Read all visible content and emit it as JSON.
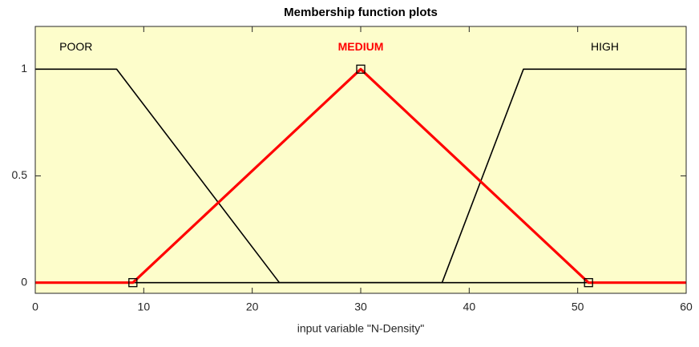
{
  "chart_data": {
    "type": "line",
    "title": "Membership function plots",
    "x_label": "input variable \"N-Density\"",
    "xlim": [
      0,
      60
    ],
    "xticks": [
      0,
      10,
      20,
      30,
      40,
      50,
      60
    ],
    "ylim": [
      -0.05,
      1.2
    ],
    "yticks": [
      0,
      0.5,
      1
    ],
    "grid": false,
    "background": "#fdfdcb",
    "series": [
      {
        "name": "POOR",
        "color": "#000000",
        "x": [
          0,
          7.5,
          22.5,
          60
        ],
        "values": [
          1,
          1,
          0,
          0
        ]
      },
      {
        "name": "HIGH",
        "color": "#000000",
        "x": [
          0,
          37.5,
          45,
          60
        ],
        "values": [
          0,
          0,
          1,
          1
        ]
      },
      {
        "name": "MEDIUM",
        "color": "#ff0000",
        "marker": "square",
        "x": [
          0,
          9,
          30,
          51,
          60
        ],
        "values": [
          0,
          0,
          1,
          0,
          0
        ]
      }
    ]
  }
}
